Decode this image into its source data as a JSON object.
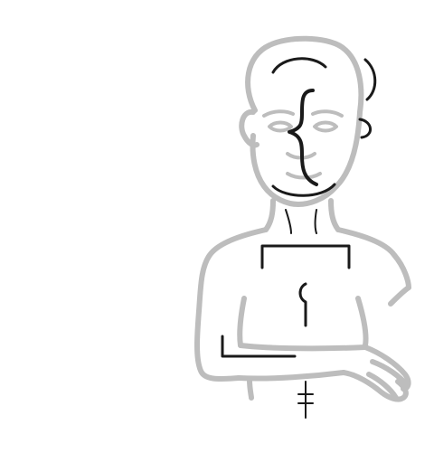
{
  "figure": {
    "background": "#ffffff",
    "outline_color": "#bdbdbd",
    "mark_color": "#1a1a1a"
  }
}
